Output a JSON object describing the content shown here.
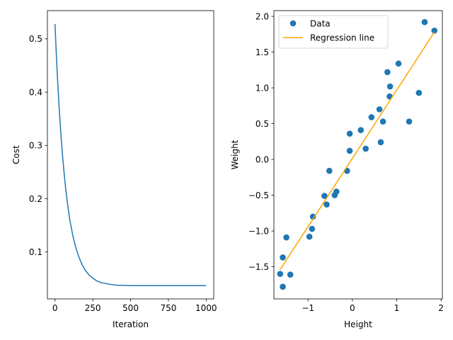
{
  "chart_data": [
    {
      "type": "line",
      "title": "",
      "xlabel": "Iteration",
      "ylabel": "Cost",
      "xlim": [
        -50,
        1050
      ],
      "ylim": [
        0.012,
        0.553
      ],
      "xticks": [
        0,
        250,
        500,
        750,
        1000
      ],
      "xtick_labels": [
        "0",
        "250",
        "500",
        "750",
        "1000"
      ],
      "yticks": [
        0.1,
        0.2,
        0.3,
        0.4,
        0.5
      ],
      "ytick_labels": [
        "0.1",
        "0.2",
        "0.3",
        "0.4",
        "0.5"
      ],
      "grid": false,
      "series": [
        {
          "color": "#1f77b4",
          "x": [
            0,
            10,
            20,
            30,
            40,
            50,
            60,
            70,
            80,
            90,
            100,
            120,
            140,
            160,
            180,
            200,
            225,
            250,
            275,
            300,
            350,
            400,
            500,
            600,
            700,
            800,
            900,
            1000
          ],
          "y": [
            0.528,
            0.464,
            0.408,
            0.36,
            0.318,
            0.281,
            0.249,
            0.221,
            0.197,
            0.176,
            0.157,
            0.128,
            0.106,
            0.089,
            0.076,
            0.066,
            0.057,
            0.051,
            0.046,
            0.043,
            0.04,
            0.038,
            0.037,
            0.037,
            0.037,
            0.037,
            0.037,
            0.037
          ]
        }
      ]
    },
    {
      "type": "scatter",
      "title": "",
      "xlabel": "Height",
      "ylabel": "Weight",
      "xlim": [
        -1.77,
        2.03
      ],
      "ylim": [
        -1.95,
        2.08
      ],
      "xticks": [
        -1,
        0,
        1,
        2
      ],
      "xtick_labels": [
        "−1",
        "0",
        "1",
        "2"
      ],
      "yticks": [
        -1.5,
        -1.0,
        -0.5,
        0.0,
        0.5,
        1.0,
        1.5,
        2.0
      ],
      "ytick_labels": [
        "−1.5",
        "−1.0",
        "−0.5",
        "0.0",
        "0.5",
        "1.0",
        "1.5",
        "2.0"
      ],
      "grid": false,
      "legend": {
        "position": "top-left",
        "entries": [
          {
            "label": "Data",
            "kind": "marker",
            "color": "#1f77b4"
          },
          {
            "label": "Regression line",
            "kind": "line",
            "color": "#ffa500"
          }
        ]
      },
      "series": [
        {
          "name": "Data",
          "kind": "scatter",
          "color": "#1f77b4",
          "points": [
            [
              -1.63,
              -1.6
            ],
            [
              -1.57,
              -1.78
            ],
            [
              -1.57,
              -1.37
            ],
            [
              -1.49,
              -1.09
            ],
            [
              -1.4,
              -1.61
            ],
            [
              -0.97,
              -1.08
            ],
            [
              -0.91,
              -0.97
            ],
            [
              -0.89,
              -0.8
            ],
            [
              -0.63,
              -0.51
            ],
            [
              -0.58,
              -0.63
            ],
            [
              -0.52,
              -0.16
            ],
            [
              -0.4,
              -0.5
            ],
            [
              -0.36,
              -0.45
            ],
            [
              -0.12,
              -0.16
            ],
            [
              -0.06,
              0.36
            ],
            [
              -0.06,
              0.12
            ],
            [
              0.19,
              0.41
            ],
            [
              0.3,
              0.15
            ],
            [
              0.43,
              0.59
            ],
            [
              0.61,
              0.7
            ],
            [
              0.64,
              0.24
            ],
            [
              0.69,
              0.53
            ],
            [
              0.79,
              1.22
            ],
            [
              0.84,
              0.88
            ],
            [
              0.85,
              1.02
            ],
            [
              1.04,
              1.34
            ],
            [
              1.28,
              0.53
            ],
            [
              1.5,
              0.93
            ],
            [
              1.63,
              1.92
            ],
            [
              1.85,
              1.8
            ]
          ]
        },
        {
          "name": "Regression line",
          "kind": "line",
          "color": "#ffa500",
          "points": [
            [
              -1.63,
              -1.54
            ],
            [
              1.85,
              1.78
            ]
          ]
        }
      ]
    }
  ]
}
